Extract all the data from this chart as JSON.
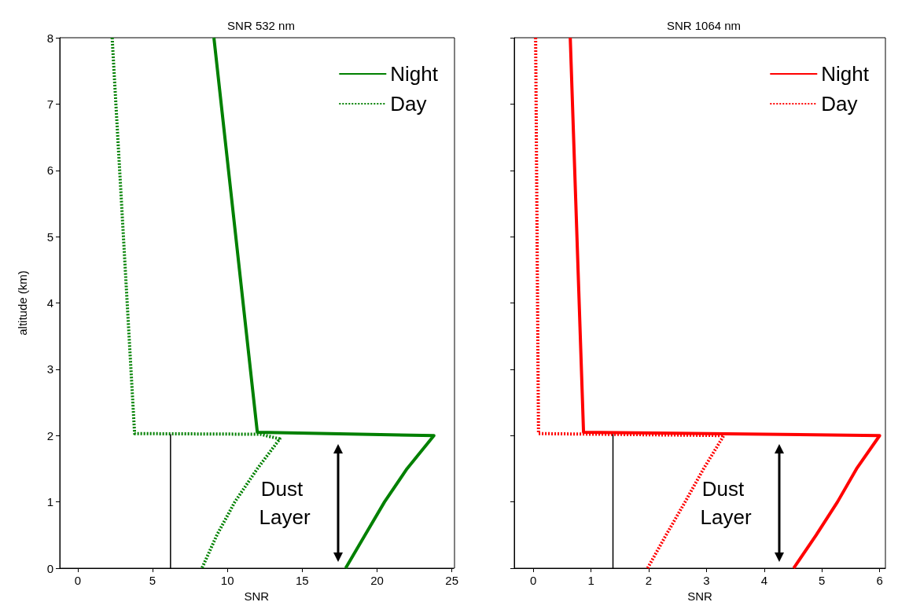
{
  "chart_data": [
    {
      "type": "line",
      "title": "SNR 532 nm",
      "xlabel": "SNR",
      "ylabel": "altitude (km)",
      "xlim": [
        -1.2,
        25.1
      ],
      "xticks": [
        0,
        5,
        10,
        15,
        20,
        25
      ],
      "ylim": [
        0,
        8
      ],
      "yticks": [
        0,
        1,
        2,
        3,
        4,
        5,
        6,
        7,
        8
      ],
      "grid": false,
      "legend": "top right",
      "marker": "none",
      "series": [
        {
          "name": "Night",
          "color": "#008000",
          "line_style": "solid",
          "x": [
            9.1,
            12.0,
            23.8,
            22.0,
            20.5,
            19.2,
            17.9
          ],
          "values": [
            8,
            2.05,
            2.0,
            1.5,
            1.0,
            0.5,
            0
          ]
        },
        {
          "name": "Day",
          "color": "#008000",
          "line_style": "dotted",
          "x": [
            2.3,
            3.8,
            12.2,
            13.5,
            12.0,
            10.5,
            9.3,
            8.3
          ],
          "values": [
            8,
            2.03,
            2.02,
            1.95,
            1.5,
            1.0,
            0.5,
            0
          ]
        },
        {
          "color": "#000000",
          "line_style": "solid",
          "x": [
            6.2,
            6.2
          ],
          "values": [
            0,
            2.02
          ]
        }
      ],
      "annotations": [
        "Dust Layer"
      ]
    },
    {
      "type": "line",
      "title": "SNR 1064 nm",
      "xlabel": "SNR",
      "xlim": [
        -0.33,
        6.1
      ],
      "xticks": [
        0,
        1,
        2,
        3,
        4,
        5,
        6
      ],
      "ylim": [
        0,
        8
      ],
      "yticks": [
        0,
        1,
        2,
        3,
        4,
        5,
        6,
        7,
        8
      ],
      "tick_labels": "x",
      "grid": false,
      "legend": "top right",
      "marker": "none",
      "series": [
        {
          "name": "Night",
          "color": "#ff0000",
          "line_style": "solid",
          "x": [
            0.64,
            0.87,
            6.0,
            5.6,
            5.27,
            4.9,
            4.51
          ],
          "values": [
            8,
            2.05,
            2.0,
            1.5,
            1.0,
            0.5,
            0
          ]
        },
        {
          "name": "Day",
          "color": "#ff0000",
          "line_style": "dotted",
          "x": [
            0.04,
            0.09,
            3.3,
            2.95,
            2.63,
            2.3,
            1.98
          ],
          "values": [
            8,
            2.03,
            2.0,
            1.5,
            1.0,
            0.5,
            0
          ]
        },
        {
          "color": "#000000",
          "line_style": "solid",
          "x": [
            1.38,
            1.38
          ],
          "values": [
            0,
            2.02
          ]
        }
      ],
      "annotations": [
        "Dust Layer"
      ]
    }
  ]
}
